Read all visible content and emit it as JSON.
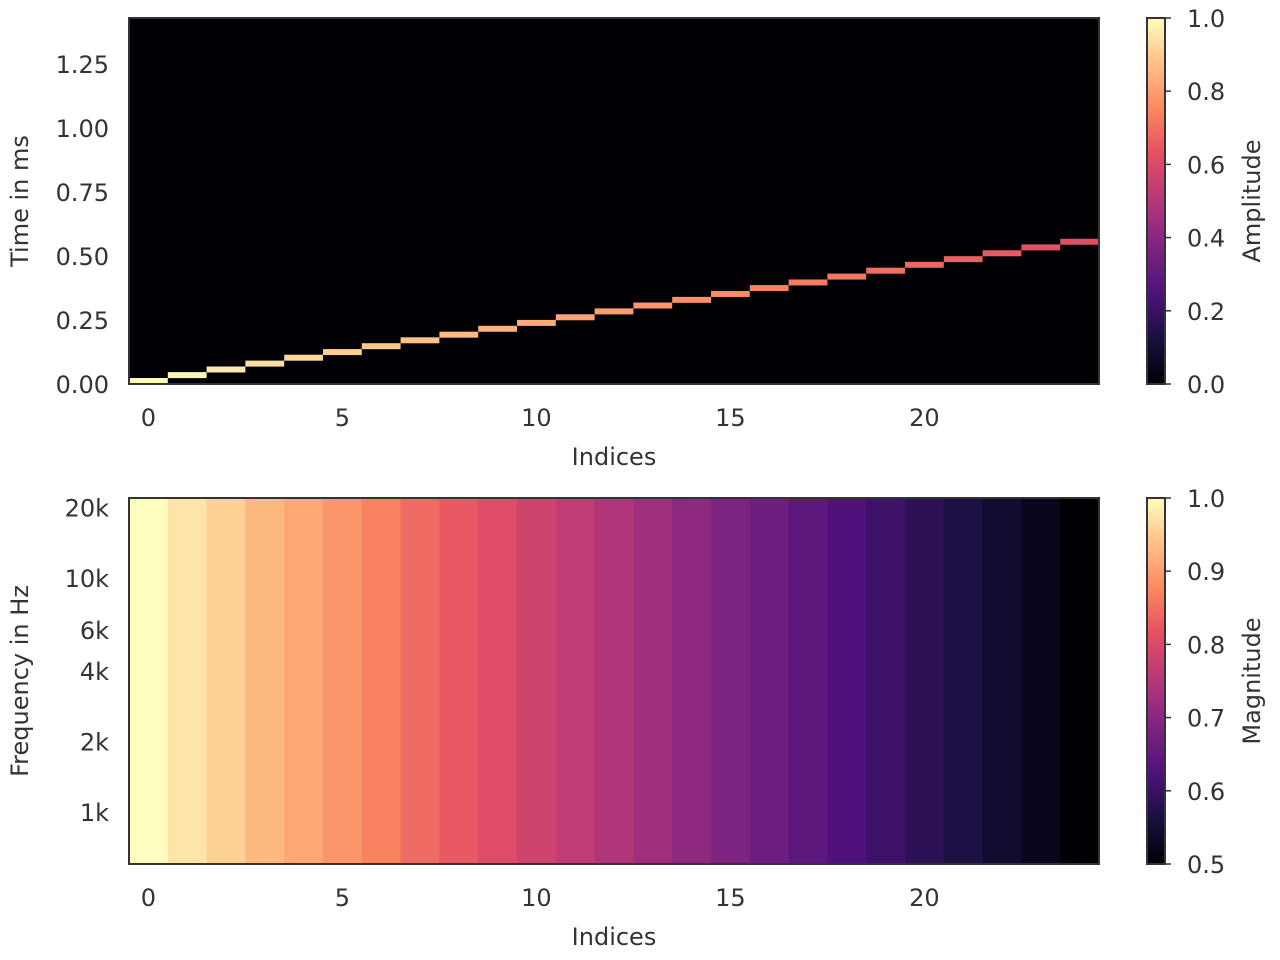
{
  "chart_data": [
    {
      "type": "heatmap",
      "name": "impulse-response",
      "xlabel": "Indices",
      "ylabel": "Time in ms",
      "xlim": [
        -0.5,
        24.5
      ],
      "ylim": [
        0,
        1.43
      ],
      "x_ticks": [
        0,
        5,
        10,
        15,
        20
      ],
      "x_tick_labels": [
        "0",
        "5",
        "10",
        "15",
        "20"
      ],
      "y_ticks": [
        0,
        0.25,
        0.5,
        0.75,
        1.0,
        1.25
      ],
      "y_tick_labels": [
        "0.00",
        "0.25",
        "0.50",
        "0.75",
        "1.00",
        "1.25"
      ],
      "background_value": 0,
      "cells": [
        {
          "x": 0,
          "time_ms": 0.0,
          "amplitude": 1.0
        },
        {
          "x": 1,
          "time_ms": 0.023,
          "amplitude": 0.985
        },
        {
          "x": 2,
          "time_ms": 0.045,
          "amplitude": 0.96
        },
        {
          "x": 3,
          "time_ms": 0.068,
          "amplitude": 0.94
        },
        {
          "x": 4,
          "time_ms": 0.091,
          "amplitude": 0.92
        },
        {
          "x": 5,
          "time_ms": 0.113,
          "amplitude": 0.905
        },
        {
          "x": 6,
          "time_ms": 0.136,
          "amplitude": 0.89
        },
        {
          "x": 7,
          "time_ms": 0.159,
          "amplitude": 0.875
        },
        {
          "x": 8,
          "time_ms": 0.181,
          "amplitude": 0.86
        },
        {
          "x": 9,
          "time_ms": 0.204,
          "amplitude": 0.845
        },
        {
          "x": 10,
          "time_ms": 0.227,
          "amplitude": 0.83
        },
        {
          "x": 11,
          "time_ms": 0.249,
          "amplitude": 0.815
        },
        {
          "x": 12,
          "time_ms": 0.272,
          "amplitude": 0.8
        },
        {
          "x": 13,
          "time_ms": 0.295,
          "amplitude": 0.785
        },
        {
          "x": 14,
          "time_ms": 0.317,
          "amplitude": 0.77
        },
        {
          "x": 15,
          "time_ms": 0.34,
          "amplitude": 0.755
        },
        {
          "x": 16,
          "time_ms": 0.363,
          "amplitude": 0.74
        },
        {
          "x": 17,
          "time_ms": 0.385,
          "amplitude": 0.725
        },
        {
          "x": 18,
          "time_ms": 0.408,
          "amplitude": 0.71
        },
        {
          "x": 19,
          "time_ms": 0.431,
          "amplitude": 0.695
        },
        {
          "x": 20,
          "time_ms": 0.454,
          "amplitude": 0.68
        },
        {
          "x": 21,
          "time_ms": 0.476,
          "amplitude": 0.665
        },
        {
          "x": 22,
          "time_ms": 0.499,
          "amplitude": 0.65
        },
        {
          "x": 23,
          "time_ms": 0.522,
          "amplitude": 0.635
        },
        {
          "x": 24,
          "time_ms": 0.544,
          "amplitude": 0.62
        }
      ],
      "colorbar": {
        "label": "Amplitude",
        "range": [
          0,
          1
        ],
        "ticks": [
          0,
          0.2,
          0.4,
          0.6,
          0.8,
          1.0
        ],
        "tick_labels": [
          "0.0",
          "0.2",
          "0.4",
          "0.6",
          "0.8",
          "1.0"
        ],
        "colormap": "magma"
      }
    },
    {
      "type": "heatmap",
      "name": "magnitude-response",
      "xlabel": "Indices",
      "ylabel": "Frequency in Hz",
      "xlim": [
        -0.5,
        24.5
      ],
      "ylim": [
        600,
        22000
      ],
      "y_scale": "log",
      "x_ticks": [
        0,
        5,
        10,
        15,
        20
      ],
      "x_tick_labels": [
        "0",
        "5",
        "10",
        "15",
        "20"
      ],
      "y_ticks": [
        1000,
        2000,
        4000,
        6000,
        10000,
        20000
      ],
      "y_tick_labels": [
        "1k",
        "2k",
        "4k",
        "6k",
        "10k",
        "20k"
      ],
      "x": [
        0,
        1,
        2,
        3,
        4,
        5,
        6,
        7,
        8,
        9,
        10,
        11,
        12,
        13,
        14,
        15,
        16,
        17,
        18,
        19,
        20,
        21,
        22,
        23,
        24
      ],
      "magnitude": [
        1.0,
        0.975,
        0.955,
        0.93,
        0.91,
        0.89,
        0.87,
        0.845,
        0.825,
        0.805,
        0.785,
        0.765,
        0.745,
        0.725,
        0.705,
        0.685,
        0.665,
        0.645,
        0.625,
        0.605,
        0.585,
        0.565,
        0.545,
        0.525,
        0.5
      ],
      "colorbar": {
        "label": "Magnitude",
        "range": [
          0.5,
          1.0
        ],
        "ticks": [
          0.5,
          0.6,
          0.7,
          0.8,
          0.9,
          1.0
        ],
        "tick_labels": [
          "0.5",
          "0.6",
          "0.7",
          "0.8",
          "0.9",
          "1.0"
        ],
        "colormap": "magma"
      }
    }
  ]
}
